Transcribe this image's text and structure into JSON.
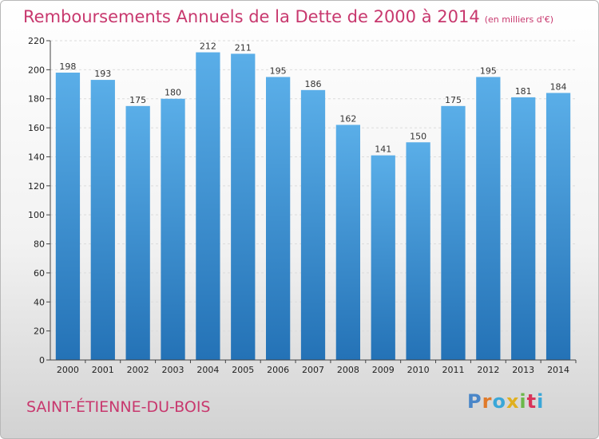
{
  "title": "Remboursements Annuels de la Dette de 2000 à 2014",
  "unit_note": "(en milliers d'€)",
  "commune": "SAINT-ÉTIENNE-DU-BOIS",
  "logo": {
    "text": "Proxiti",
    "colors": [
      "#4a86c8",
      "#e07a2a",
      "#3aa7d8",
      "#e0b020",
      "#6cb84a",
      "#d9345a",
      "#3aa7d8"
    ]
  },
  "colors": {
    "title": "#c8386e",
    "bar_top": "#5aaee8",
    "bar_bottom": "#2472b6"
  },
  "chart_data": {
    "type": "bar",
    "categories": [
      "2000",
      "2001",
      "2002",
      "2003",
      "2004",
      "2005",
      "2006",
      "2007",
      "2008",
      "2009",
      "2010",
      "2011",
      "2012",
      "2013",
      "2014"
    ],
    "values": [
      198,
      193,
      175,
      180,
      212,
      211,
      195,
      186,
      162,
      141,
      150,
      175,
      195,
      181,
      184
    ],
    "title": "Remboursements Annuels de la Dette de 2000 à 2014",
    "xlabel": "",
    "ylabel": "",
    "ylim": [
      0,
      220
    ],
    "yticks": [
      0,
      20,
      40,
      60,
      80,
      100,
      120,
      140,
      160,
      180,
      200,
      220
    ],
    "grid": true,
    "legend": "none"
  }
}
